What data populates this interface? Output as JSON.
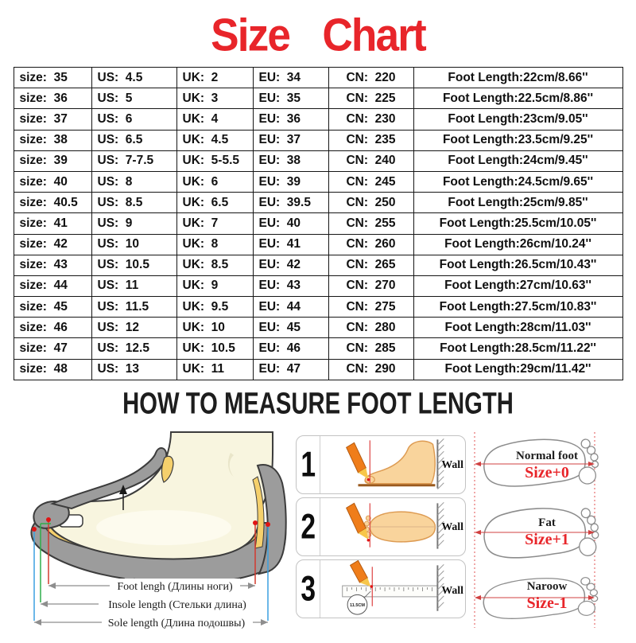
{
  "title": {
    "text": "Size Chart"
  },
  "table": {
    "rows": [
      [
        "size:  35",
        "US:  4.5",
        "UK:  2",
        "EU:  34",
        "CN:  220",
        "Foot Length:22cm/8.66''"
      ],
      [
        "size:  36",
        "US:  5",
        "UK:  3",
        "EU:  35",
        "CN:  225",
        "Foot Length:22.5cm/8.86''"
      ],
      [
        "size:  37",
        "US:  6",
        "UK:  4",
        "EU:  36",
        "CN:  230",
        "Foot Length:23cm/9.05''"
      ],
      [
        "size:  38",
        "US:  6.5",
        "UK:  4.5",
        "EU:  37",
        "CN:  235",
        "Foot Length:23.5cm/9.25''"
      ],
      [
        "size:  39",
        "US:  7-7.5",
        "UK:  5-5.5",
        "EU:  38",
        "CN:  240",
        "Foot Length:24cm/9.45''"
      ],
      [
        "size:  40",
        "US:  8",
        "UK:  6",
        "EU:  39",
        "CN:  245",
        "Foot Length:24.5cm/9.65''"
      ],
      [
        "size:  40.5",
        "US:  8.5",
        "UK:  6.5",
        "EU:  39.5",
        "CN:  250",
        "Foot Length:25cm/9.85''"
      ],
      [
        "size:  41",
        "US:  9",
        "UK:  7",
        "EU:  40",
        "CN:  255",
        "Foot Length:25.5cm/10.05''"
      ],
      [
        "size:  42",
        "US:  10",
        "UK:  8",
        "EU:  41",
        "CN:  260",
        "Foot Length:26cm/10.24''"
      ],
      [
        "size:  43",
        "US:  10.5",
        "UK:  8.5",
        "EU:  42",
        "CN:  265",
        "Foot Length:26.5cm/10.43''"
      ],
      [
        "size:  44",
        "US:  11",
        "UK:  9",
        "EU:  43",
        "CN:  270",
        "Foot Length:27cm/10.63''"
      ],
      [
        "size:  45",
        "US:  11.5",
        "UK:  9.5",
        "EU:  44",
        "CN:  275",
        "Foot Length:27.5cm/10.83''"
      ],
      [
        "size:  46",
        "US:  12",
        "UK:  10",
        "EU:  45",
        "CN:  280",
        "Foot Length:28cm/11.03''"
      ],
      [
        "size:  47",
        "US:  12.5",
        "UK:  10.5",
        "EU:  46",
        "CN:  285",
        "Foot Length:28.5cm/11.22''"
      ],
      [
        "size:  48",
        "US:  13",
        "UK:  11",
        "EU:  47",
        "CN:  290",
        "Foot Length:29cm/11.42''"
      ]
    ]
  },
  "measure": {
    "heading": "HOW TO MEASURE FOOT LENGTH"
  },
  "diagram": {
    "foot_length_label": "Foot lengh (Длины ноги)",
    "insole_length_label": "Insole length (Стельки длина)",
    "sole_length_label": "Sole length (Длина подошвы)"
  },
  "steps": {
    "items": [
      {
        "number": "1",
        "wall_label": "Wall"
      },
      {
        "number": "2",
        "wall_label": "Wall"
      },
      {
        "number": "3",
        "wall_label": "Wall",
        "ruler_note": "11.5CM"
      }
    ]
  },
  "foot_types": {
    "items": [
      {
        "name": "Normal foot",
        "size_adjust": "Size+0"
      },
      {
        "name": "Fat",
        "size_adjust": "Size+1"
      },
      {
        "name": "Naroow",
        "size_adjust": "Size-1"
      }
    ]
  },
  "colors": {
    "accent_red": "#e8252a"
  }
}
